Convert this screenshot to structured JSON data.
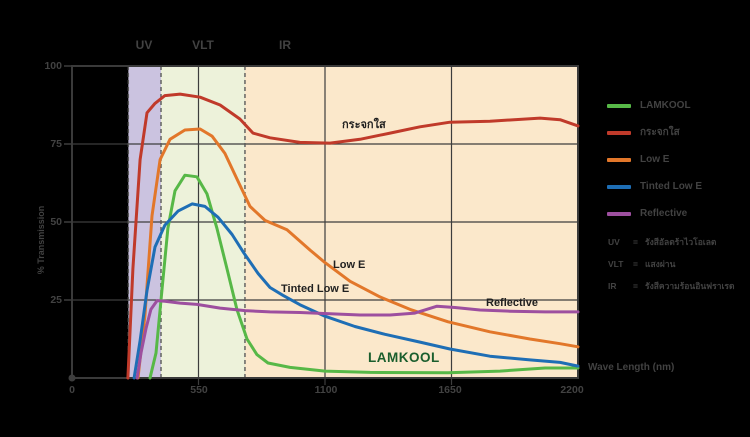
{
  "chart_data": {
    "type": "line",
    "xlabel": "Wave Length (nm)",
    "ylabel": "% Transmission",
    "xlim": [
      0,
      2200
    ],
    "ylim": [
      0,
      100
    ],
    "x_ticks": [
      "0",
      "550",
      "1100",
      "1650",
      "2200"
    ],
    "y_ticks": [
      "100",
      "75",
      "50",
      "25"
    ],
    "grid_x_nm": [
      550,
      1100,
      1650
    ],
    "grid_y_pct": [
      25,
      50,
      75
    ],
    "bands": [
      {
        "label": "UV",
        "range_nm": [
          245,
          387
        ],
        "color": "#cbc3e0"
      },
      {
        "label": "VLT",
        "range_nm": [
          387,
          752
        ],
        "color": "#edf2da"
      },
      {
        "label": "IR",
        "range_nm": [
          752,
          2200
        ],
        "color": "#fbe8cb"
      }
    ],
    "series": [
      {
        "name": "LAMKOOL",
        "color": "#57b847",
        "points": [
          [
            339,
            0
          ],
          [
            365,
            8
          ],
          [
            391,
            28
          ],
          [
            417,
            48
          ],
          [
            448,
            60
          ],
          [
            491,
            65
          ],
          [
            543,
            64.5
          ],
          [
            587,
            59
          ],
          [
            630,
            48
          ],
          [
            674,
            35
          ],
          [
            717,
            22
          ],
          [
            761,
            12.5
          ],
          [
            804,
            7.5
          ],
          [
            852,
            4.8
          ],
          [
            948,
            3.4
          ],
          [
            1100,
            2.2
          ],
          [
            1296,
            1.8
          ],
          [
            1635,
            1.7
          ],
          [
            1861,
            2.2
          ],
          [
            2057,
            3.2
          ],
          [
            2200,
            3.2
          ]
        ]
      },
      {
        "name": "กระจกใส",
        "color": "#c03a2a",
        "points": [
          [
            243,
            0
          ],
          [
            265,
            35
          ],
          [
            296,
            70
          ],
          [
            326,
            85
          ],
          [
            361,
            88
          ],
          [
            404,
            90.5
          ],
          [
            470,
            91
          ],
          [
            557,
            90
          ],
          [
            644,
            87.5
          ],
          [
            730,
            83
          ],
          [
            787,
            78.5
          ],
          [
            861,
            77
          ],
          [
            991,
            75.5
          ],
          [
            1122,
            75.3
          ],
          [
            1252,
            76.5
          ],
          [
            1383,
            78.5
          ],
          [
            1513,
            80.5
          ],
          [
            1643,
            82
          ],
          [
            1817,
            82.3
          ],
          [
            2035,
            83.3
          ],
          [
            2122,
            82.8
          ],
          [
            2200,
            80.8
          ]
        ]
      },
      {
        "name": "Low E",
        "color": "#e2772a",
        "points": [
          [
            287,
            0
          ],
          [
            317,
            20
          ],
          [
            348,
            52
          ],
          [
            383,
            70
          ],
          [
            426,
            76.5
          ],
          [
            491,
            79.5
          ],
          [
            557,
            79.8
          ],
          [
            609,
            77.5
          ],
          [
            665,
            72
          ],
          [
            722,
            63
          ],
          [
            774,
            55
          ],
          [
            839,
            50.5
          ],
          [
            935,
            47.5
          ],
          [
            1035,
            41
          ],
          [
            1100,
            37
          ],
          [
            1209,
            31
          ],
          [
            1339,
            26
          ],
          [
            1470,
            22
          ],
          [
            1635,
            18
          ],
          [
            1817,
            14.8
          ],
          [
            1991,
            12.5
          ],
          [
            2122,
            11
          ],
          [
            2200,
            10
          ]
        ]
      },
      {
        "name": "Tinted Low E",
        "color": "#1e6eb5",
        "points": [
          [
            270,
            0
          ],
          [
            296,
            12
          ],
          [
            326,
            28
          ],
          [
            361,
            42
          ],
          [
            404,
            49
          ],
          [
            461,
            53.5
          ],
          [
            522,
            55.8
          ],
          [
            578,
            55
          ],
          [
            635,
            51.5
          ],
          [
            696,
            46
          ],
          [
            748,
            40
          ],
          [
            809,
            33.5
          ],
          [
            861,
            29
          ],
          [
            917,
            26.5
          ],
          [
            991,
            23.5
          ],
          [
            1100,
            19.8
          ],
          [
            1230,
            16.5
          ],
          [
            1361,
            14
          ],
          [
            1513,
            11.5
          ],
          [
            1643,
            9.3
          ],
          [
            1817,
            7
          ],
          [
            1991,
            5.8
          ],
          [
            2122,
            5
          ],
          [
            2200,
            3.8
          ]
        ]
      },
      {
        "name": "Reflective",
        "color": "#9d4f9f",
        "points": [
          [
            283,
            0
          ],
          [
            300,
            8
          ],
          [
            322,
            16
          ],
          [
            343,
            22
          ],
          [
            370,
            24.8
          ],
          [
            404,
            24.6
          ],
          [
            470,
            24
          ],
          [
            543,
            23.6
          ],
          [
            644,
            22.4
          ],
          [
            752,
            21.6
          ],
          [
            861,
            21.2
          ],
          [
            991,
            21
          ],
          [
            1122,
            20.6
          ],
          [
            1252,
            20.2
          ],
          [
            1383,
            20.2
          ],
          [
            1491,
            20.8
          ],
          [
            1587,
            23
          ],
          [
            1665,
            22.6
          ],
          [
            1774,
            21.8
          ],
          [
            1904,
            21.4
          ],
          [
            2057,
            21.2
          ],
          [
            2200,
            21.2
          ]
        ]
      }
    ]
  },
  "axes": {
    "x_ticks": [
      "0",
      "550",
      "1100",
      "1650",
      "2200"
    ],
    "y_ticks": [
      "100",
      "75",
      "50",
      "25"
    ],
    "xlabel": "Wave Length (nm)",
    "ylabel": "% Transmission"
  },
  "band_labels": [
    "UV",
    "VLT",
    "IR"
  ],
  "annotations": {
    "clear_glass": "กระจกใส",
    "low_e": "Low E",
    "tinted_low_e": "Tinted Low E",
    "reflective": "Reflective",
    "lamkool": "LAMKOOL",
    "lamkool_color": "#1a5e2d"
  },
  "legend": {
    "items": [
      {
        "label": "LAMKOOL",
        "color": "#57b847"
      },
      {
        "label": "กระจกใส",
        "color": "#c03a2a"
      },
      {
        "label": "Low E",
        "color": "#e2772a"
      },
      {
        "label": "Tinted Low E",
        "color": "#1e6eb5"
      },
      {
        "label": "Reflective",
        "color": "#9d4f9f"
      }
    ]
  },
  "notes": [
    {
      "abbr": "UV",
      "eq": "=",
      "text": "รังสีอัลตร้าไวโอเลต"
    },
    {
      "abbr": "VLT",
      "eq": "=",
      "text": "แสงผ่าน"
    },
    {
      "abbr": "IR",
      "eq": "=",
      "text": "รังสีความร้อนอินฟราเรด"
    }
  ],
  "colors": {
    "background": "#000000",
    "plot_border": "#3a3a3a",
    "grid": "#3d3d3d",
    "dashed": "#5a5a5a",
    "text": "#424242",
    "annotation_text": "#1f1f1f"
  }
}
